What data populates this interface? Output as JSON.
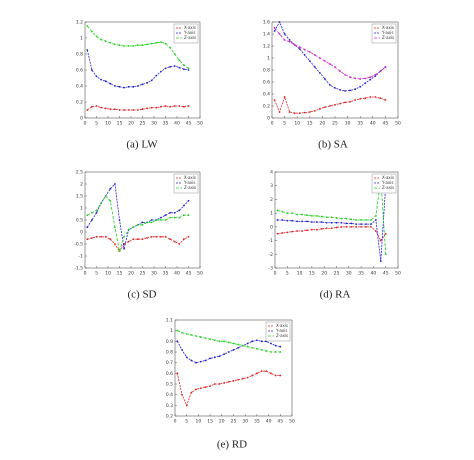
{
  "chart_data": [
    {
      "type": "line",
      "caption": "(a) LW",
      "x": [
        1,
        3,
        5,
        7,
        9,
        11,
        13,
        15,
        17,
        19,
        21,
        23,
        25,
        27,
        29,
        31,
        33,
        35,
        37,
        39,
        41,
        43,
        45
      ],
      "xlim": [
        0,
        50
      ],
      "xticks": [
        0,
        5,
        10,
        15,
        20,
        25,
        30,
        35,
        40,
        45,
        50
      ],
      "ylim": [
        0,
        1.2
      ],
      "yticks": [
        0,
        0.2,
        0.4,
        0.6,
        0.8,
        1,
        1.2
      ],
      "legend": "upper right",
      "series": [
        {
          "name": "X-axis",
          "color": "#e02020",
          "values": [
            0.1,
            0.14,
            0.15,
            0.13,
            0.12,
            0.11,
            0.11,
            0.1,
            0.1,
            0.1,
            0.1,
            0.1,
            0.11,
            0.12,
            0.13,
            0.13,
            0.14,
            0.15,
            0.14,
            0.15,
            0.15,
            0.14,
            0.15
          ]
        },
        {
          "name": "Y-axis",
          "color": "#2020d0",
          "values": [
            0.85,
            0.6,
            0.52,
            0.48,
            0.46,
            0.43,
            0.4,
            0.39,
            0.38,
            0.39,
            0.39,
            0.4,
            0.42,
            0.44,
            0.47,
            0.53,
            0.58,
            0.62,
            0.64,
            0.65,
            0.63,
            0.61,
            0.6
          ]
        },
        {
          "name": "Z-axis",
          "color": "#20d020",
          "values": [
            1.15,
            1.08,
            1.02,
            0.98,
            0.96,
            0.94,
            0.92,
            0.91,
            0.9,
            0.9,
            0.9,
            0.91,
            0.91,
            0.92,
            0.93,
            0.94,
            0.95,
            0.93,
            0.88,
            0.8,
            0.72,
            0.66,
            0.62
          ]
        }
      ]
    },
    {
      "type": "line",
      "caption": "(b) SA",
      "x": [
        1,
        3,
        5,
        7,
        9,
        11,
        13,
        15,
        17,
        19,
        21,
        23,
        25,
        27,
        29,
        31,
        33,
        35,
        37,
        39,
        41,
        43,
        45
      ],
      "xlim": [
        0,
        50
      ],
      "xticks": [
        0,
        5,
        10,
        15,
        20,
        25,
        30,
        35,
        40,
        45,
        50
      ],
      "ylim": [
        0,
        1.6
      ],
      "yticks": [
        0,
        0.2,
        0.4,
        0.6,
        0.8,
        1,
        1.2,
        1.4,
        1.6
      ],
      "legend": "upper right",
      "series": [
        {
          "name": "X-axis",
          "color": "#e02020",
          "values": [
            0.3,
            0.1,
            0.35,
            0.1,
            0.08,
            0.08,
            0.09,
            0.1,
            0.12,
            0.15,
            0.18,
            0.2,
            0.22,
            0.24,
            0.26,
            0.27,
            0.3,
            0.32,
            0.33,
            0.35,
            0.35,
            0.33,
            0.3
          ]
        },
        {
          "name": "Y-axis",
          "color": "#2020d0",
          "values": [
            1.45,
            1.6,
            1.4,
            1.3,
            1.22,
            1.15,
            1.05,
            0.95,
            0.85,
            0.75,
            0.65,
            0.55,
            0.5,
            0.47,
            0.45,
            0.46,
            0.48,
            0.52,
            0.58,
            0.64,
            0.7,
            0.78,
            0.85
          ]
        },
        {
          "name": "Z-axis",
          "color": "#d020d0",
          "values": [
            1.5,
            1.4,
            1.3,
            1.27,
            1.22,
            1.18,
            1.14,
            1.1,
            1.05,
            1.0,
            0.95,
            0.9,
            0.85,
            0.78,
            0.72,
            0.68,
            0.66,
            0.65,
            0.66,
            0.68,
            0.72,
            0.78,
            0.85
          ]
        }
      ]
    },
    {
      "type": "line",
      "caption": "(c) SD",
      "x": [
        1,
        3,
        5,
        7,
        9,
        11,
        13,
        15,
        17,
        19,
        21,
        23,
        25,
        27,
        29,
        31,
        33,
        35,
        37,
        39,
        41,
        43,
        45
      ],
      "xlim": [
        0,
        50
      ],
      "xticks": [
        0,
        5,
        10,
        15,
        20,
        25,
        30,
        35,
        40,
        45,
        50
      ],
      "ylim": [
        -1.5,
        2.5
      ],
      "yticks": [
        -1.5,
        -1,
        -0.5,
        0,
        0.5,
        1,
        1.5,
        2,
        2.5
      ],
      "legend": "upper right",
      "series": [
        {
          "name": "X-axis",
          "color": "#e02020",
          "values": [
            -0.3,
            -0.25,
            -0.2,
            -0.2,
            -0.2,
            -0.3,
            -0.5,
            -0.8,
            -0.5,
            -0.4,
            -0.3,
            -0.3,
            -0.3,
            -0.25,
            -0.2,
            -0.2,
            -0.2,
            -0.2,
            -0.3,
            -0.4,
            -0.5,
            -0.3,
            -0.2
          ]
        },
        {
          "name": "Y-axis",
          "color": "#2020d0",
          "values": [
            0.2,
            0.5,
            0.8,
            1.2,
            1.5,
            1.8,
            2.0,
            0.5,
            -0.7,
            0.1,
            0.2,
            0.3,
            0.4,
            0.4,
            0.5,
            0.5,
            0.6,
            0.7,
            0.8,
            0.8,
            0.9,
            1.1,
            1.3
          ]
        },
        {
          "name": "Z-axis",
          "color": "#20d020",
          "values": [
            0.7,
            0.8,
            0.9,
            1.2,
            1.5,
            1.3,
            0.2,
            -0.8,
            -0.2,
            0.1,
            0.2,
            0.3,
            0.3,
            0.4,
            0.4,
            0.5,
            0.5,
            0.5,
            0.6,
            0.6,
            0.6,
            0.7,
            0.7
          ]
        }
      ]
    },
    {
      "type": "line",
      "caption": "(d) RA",
      "x": [
        1,
        3,
        5,
        7,
        9,
        11,
        13,
        15,
        17,
        19,
        21,
        23,
        25,
        27,
        29,
        31,
        33,
        35,
        37,
        39,
        41,
        43,
        45
      ],
      "xlim": [
        0,
        50
      ],
      "xticks": [
        0,
        5,
        10,
        15,
        20,
        25,
        30,
        35,
        40,
        45,
        50
      ],
      "ylim": [
        -3,
        4
      ],
      "yticks": [
        -3,
        -2,
        -1,
        0,
        1,
        2,
        3,
        4
      ],
      "legend": "upper right",
      "series": [
        {
          "name": "X-axis",
          "color": "#e02020",
          "values": [
            -0.5,
            -0.45,
            -0.4,
            -0.35,
            -0.3,
            -0.3,
            -0.25,
            -0.2,
            -0.2,
            -0.15,
            -0.1,
            -0.1,
            -0.05,
            0,
            0,
            0,
            0,
            0,
            0,
            0,
            -0.3,
            -1.0,
            -0.5
          ]
        },
        {
          "name": "Y-axis",
          "color": "#2020d0",
          "values": [
            0.5,
            0.5,
            0.45,
            0.45,
            0.4,
            0.4,
            0.4,
            0.35,
            0.35,
            0.35,
            0.3,
            0.3,
            0.3,
            0.3,
            0.25,
            0.25,
            0.2,
            0.2,
            0.2,
            0.2,
            0.5,
            -2.5,
            3.0
          ]
        },
        {
          "name": "Z-axis",
          "color": "#20d020",
          "values": [
            1.2,
            1.1,
            1.0,
            1.0,
            0.9,
            0.9,
            0.85,
            0.8,
            0.8,
            0.75,
            0.7,
            0.7,
            0.65,
            0.6,
            0.6,
            0.55,
            0.5,
            0.5,
            0.5,
            0.5,
            0.8,
            3.5,
            -2.0
          ]
        }
      ]
    },
    {
      "type": "line",
      "caption": "(e) RD",
      "x": [
        1,
        3,
        5,
        7,
        9,
        11,
        13,
        15,
        17,
        19,
        21,
        23,
        25,
        27,
        29,
        31,
        33,
        35,
        37,
        39,
        41,
        43,
        45
      ],
      "xlim": [
        0,
        50
      ],
      "xticks": [
        0,
        5,
        10,
        15,
        20,
        25,
        30,
        35,
        40,
        45,
        50
      ],
      "ylim": [
        0.2,
        1.1
      ],
      "yticks": [
        0.2,
        0.3,
        0.4,
        0.5,
        0.6,
        0.7,
        0.8,
        0.9,
        1,
        1.1
      ],
      "legend": "upper right",
      "series": [
        {
          "name": "X-axis",
          "color": "#e02020",
          "values": [
            0.6,
            0.4,
            0.3,
            0.42,
            0.45,
            0.46,
            0.47,
            0.48,
            0.5,
            0.5,
            0.51,
            0.52,
            0.53,
            0.54,
            0.55,
            0.56,
            0.58,
            0.6,
            0.62,
            0.62,
            0.6,
            0.58,
            0.58
          ]
        },
        {
          "name": "Y-axis",
          "color": "#2020d0",
          "values": [
            0.9,
            0.82,
            0.75,
            0.72,
            0.7,
            0.71,
            0.72,
            0.74,
            0.75,
            0.76,
            0.78,
            0.8,
            0.82,
            0.84,
            0.86,
            0.88,
            0.9,
            0.91,
            0.9,
            0.9,
            0.88,
            0.86,
            0.85
          ]
        },
        {
          "name": "Z-axis",
          "color": "#20d020",
          "values": [
            1.0,
            0.98,
            0.97,
            0.96,
            0.95,
            0.94,
            0.93,
            0.92,
            0.91,
            0.9,
            0.9,
            0.89,
            0.88,
            0.87,
            0.86,
            0.85,
            0.84,
            0.83,
            0.82,
            0.81,
            0.8,
            0.8,
            0.8
          ]
        }
      ]
    }
  ]
}
